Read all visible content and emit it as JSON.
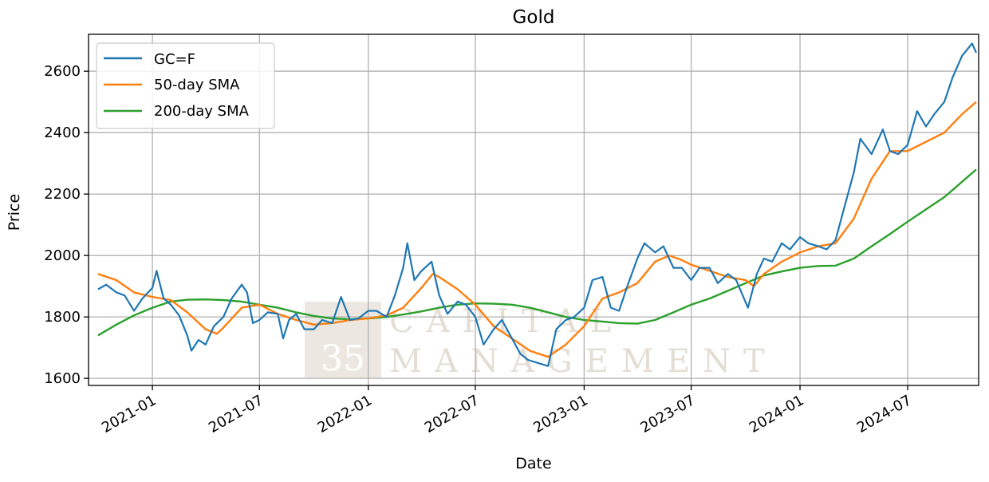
{
  "chart_data": {
    "type": "line",
    "title": "Gold",
    "xlabel": "Date",
    "ylabel": "Price",
    "x_ticks": [
      "2021-01",
      "2021-07",
      "2022-01",
      "2022-07",
      "2023-01",
      "2023-07",
      "2024-01",
      "2024-07"
    ],
    "xlim": [
      "2020-09-15",
      "2024-10-29"
    ],
    "y_ticks": [
      1600,
      1800,
      2000,
      2200,
      2400,
      2600
    ],
    "ylim": [
      1577,
      2720
    ],
    "grid": true,
    "legend": {
      "placement": "top-left"
    },
    "watermark": {
      "lines": [
        "CAPITAL",
        "MANAGEMENT"
      ],
      "badge": "35"
    },
    "series": [
      {
        "name": "GC=F",
        "color": "#1f77b4",
        "x": [
          "2020-10-01",
          "2020-10-15",
          "2020-11-01",
          "2020-11-15",
          "2020-12-01",
          "2020-12-15",
          "2021-01-01",
          "2021-01-08",
          "2021-01-20",
          "2021-02-01",
          "2021-02-15",
          "2021-03-01",
          "2021-03-08",
          "2021-03-20",
          "2021-04-01",
          "2021-04-15",
          "2021-05-01",
          "2021-05-15",
          "2021-06-01",
          "2021-06-10",
          "2021-06-20",
          "2021-07-01",
          "2021-07-15",
          "2021-08-01",
          "2021-08-10",
          "2021-08-20",
          "2021-09-01",
          "2021-09-15",
          "2021-10-01",
          "2021-10-15",
          "2021-11-01",
          "2021-11-16",
          "2021-12-01",
          "2021-12-15",
          "2022-01-01",
          "2022-01-15",
          "2022-02-01",
          "2022-02-15",
          "2022-03-01",
          "2022-03-08",
          "2022-03-20",
          "2022-04-01",
          "2022-04-18",
          "2022-05-01",
          "2022-05-15",
          "2022-06-01",
          "2022-06-15",
          "2022-07-01",
          "2022-07-15",
          "2022-08-01",
          "2022-08-15",
          "2022-09-01",
          "2022-09-15",
          "2022-09-28",
          "2022-10-15",
          "2022-11-01",
          "2022-11-15",
          "2022-12-01",
          "2022-12-15",
          "2023-01-01",
          "2023-01-15",
          "2023-02-01",
          "2023-02-15",
          "2023-03-01",
          "2023-03-15",
          "2023-04-01",
          "2023-04-13",
          "2023-05-01",
          "2023-05-15",
          "2023-06-01",
          "2023-06-15",
          "2023-07-01",
          "2023-07-15",
          "2023-08-01",
          "2023-08-15",
          "2023-09-01",
          "2023-09-15",
          "2023-10-05",
          "2023-10-20",
          "2023-11-01",
          "2023-11-15",
          "2023-12-01",
          "2023-12-15",
          "2024-01-01",
          "2024-01-15",
          "2024-02-01",
          "2024-02-15",
          "2024-03-01",
          "2024-03-15",
          "2024-04-01",
          "2024-04-12",
          "2024-05-01",
          "2024-05-20",
          "2024-06-01",
          "2024-06-15",
          "2024-07-01",
          "2024-07-17",
          "2024-08-01",
          "2024-08-15",
          "2024-09-01",
          "2024-09-15",
          "2024-10-01",
          "2024-10-18",
          "2024-10-25"
        ],
        "values": [
          1890,
          1905,
          1880,
          1870,
          1820,
          1860,
          1895,
          1950,
          1860,
          1840,
          1805,
          1740,
          1690,
          1725,
          1710,
          1770,
          1800,
          1860,
          1905,
          1880,
          1780,
          1790,
          1815,
          1810,
          1730,
          1790,
          1810,
          1760,
          1760,
          1790,
          1780,
          1865,
          1790,
          1795,
          1820,
          1820,
          1800,
          1870,
          1960,
          2040,
          1920,
          1950,
          1980,
          1870,
          1810,
          1850,
          1840,
          1800,
          1710,
          1760,
          1790,
          1730,
          1680,
          1660,
          1650,
          1640,
          1760,
          1790,
          1800,
          1830,
          1920,
          1930,
          1830,
          1820,
          1900,
          1990,
          2040,
          2010,
          2030,
          1960,
          1960,
          1920,
          1960,
          1960,
          1910,
          1940,
          1920,
          1830,
          1940,
          1990,
          1980,
          2040,
          2020,
          2060,
          2040,
          2030,
          2020,
          2050,
          2150,
          2270,
          2380,
          2330,
          2410,
          2340,
          2330,
          2360,
          2470,
          2420,
          2460,
          2500,
          2580,
          2650,
          2690,
          2660
        ]
      },
      {
        "name": "50-day SMA",
        "color": "#ff7f0e",
        "x": [
          "2020-10-01",
          "2020-11-01",
          "2020-12-01",
          "2021-01-01",
          "2021-02-01",
          "2021-03-01",
          "2021-04-01",
          "2021-04-20",
          "2021-05-01",
          "2021-06-01",
          "2021-07-01",
          "2021-08-01",
          "2021-09-01",
          "2021-10-01",
          "2021-11-01",
          "2021-12-01",
          "2022-01-01",
          "2022-02-01",
          "2022-03-01",
          "2022-04-01",
          "2022-04-20",
          "2022-05-01",
          "2022-06-01",
          "2022-07-01",
          "2022-08-01",
          "2022-09-01",
          "2022-10-01",
          "2022-11-01",
          "2022-12-01",
          "2023-01-01",
          "2023-02-01",
          "2023-03-01",
          "2023-04-01",
          "2023-05-01",
          "2023-05-25",
          "2023-06-15",
          "2023-07-01",
          "2023-08-01",
          "2023-09-01",
          "2023-10-01",
          "2023-10-15",
          "2023-11-01",
          "2023-12-01",
          "2024-01-01",
          "2024-02-01",
          "2024-03-01",
          "2024-04-01",
          "2024-05-01",
          "2024-06-01",
          "2024-07-01",
          "2024-08-01",
          "2024-09-01",
          "2024-10-01",
          "2024-10-25"
        ],
        "values": [
          1940,
          1920,
          1880,
          1865,
          1855,
          1815,
          1760,
          1745,
          1765,
          1830,
          1840,
          1810,
          1790,
          1775,
          1780,
          1790,
          1795,
          1805,
          1830,
          1895,
          1940,
          1930,
          1890,
          1840,
          1770,
          1730,
          1690,
          1670,
          1710,
          1770,
          1860,
          1880,
          1910,
          1980,
          2000,
          1985,
          1970,
          1950,
          1930,
          1920,
          1900,
          1940,
          1980,
          2010,
          2030,
          2040,
          2120,
          2250,
          2340,
          2340,
          2370,
          2400,
          2460,
          2500
        ]
      },
      {
        "name": "200-day SMA",
        "color": "#2ca02c",
        "x": [
          "2020-10-01",
          "2020-11-01",
          "2020-12-01",
          "2021-01-01",
          "2021-02-01",
          "2021-03-01",
          "2021-04-01",
          "2021-05-01",
          "2021-06-01",
          "2021-07-01",
          "2021-08-01",
          "2021-09-01",
          "2021-10-01",
          "2021-11-01",
          "2021-12-01",
          "2022-01-01",
          "2022-02-01",
          "2022-03-01",
          "2022-04-01",
          "2022-05-01",
          "2022-06-01",
          "2022-07-01",
          "2022-08-01",
          "2022-09-01",
          "2022-10-01",
          "2022-11-01",
          "2022-12-01",
          "2023-01-01",
          "2023-02-01",
          "2023-03-01",
          "2023-04-01",
          "2023-05-01",
          "2023-06-01",
          "2023-07-01",
          "2023-08-01",
          "2023-09-01",
          "2023-10-01",
          "2023-11-01",
          "2023-12-01",
          "2024-01-01",
          "2024-02-01",
          "2024-03-01",
          "2024-04-01",
          "2024-05-01",
          "2024-06-01",
          "2024-07-01",
          "2024-08-01",
          "2024-09-01",
          "2024-10-01",
          "2024-10-25"
        ],
        "values": [
          1740,
          1775,
          1805,
          1830,
          1850,
          1856,
          1857,
          1855,
          1850,
          1840,
          1830,
          1815,
          1803,
          1795,
          1792,
          1795,
          1800,
          1808,
          1818,
          1830,
          1840,
          1844,
          1843,
          1840,
          1830,
          1815,
          1800,
          1790,
          1785,
          1780,
          1778,
          1790,
          1815,
          1840,
          1860,
          1885,
          1910,
          1935,
          1948,
          1960,
          1966,
          1967,
          1990,
          2030,
          2070,
          2110,
          2150,
          2190,
          2240,
          2280
        ]
      }
    ]
  }
}
